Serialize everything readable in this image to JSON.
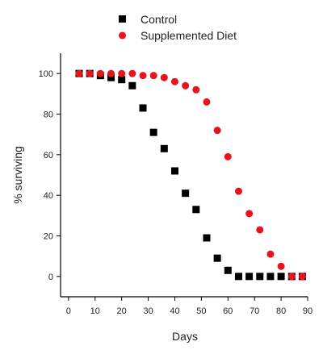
{
  "chart_data": {
    "type": "scatter",
    "title": "",
    "xlabel": "Days",
    "ylabel": "% surviving",
    "xlim": [
      -3,
      90
    ],
    "ylim": [
      -10,
      110
    ],
    "xticks": [
      0,
      10,
      20,
      30,
      40,
      50,
      60,
      70,
      80,
      90
    ],
    "yticks": [
      0,
      20,
      40,
      60,
      80,
      100
    ],
    "grid": false,
    "legend_position": "top-center",
    "series": [
      {
        "name": "Control",
        "marker": "square",
        "color": "#000000",
        "x": [
          4,
          8,
          12,
          16,
          20,
          24,
          28,
          32,
          36,
          40,
          44,
          48,
          52,
          56,
          60,
          64,
          68,
          72,
          76,
          80,
          84,
          88
        ],
        "y": [
          100,
          100,
          99,
          98,
          97,
          94,
          83,
          71,
          63,
          52,
          41,
          33,
          19,
          9,
          3,
          0,
          0,
          0,
          0,
          0,
          0,
          0
        ]
      },
      {
        "name": "Supplemented Diet",
        "marker": "circle",
        "color": "#e8141b",
        "x": [
          4,
          8,
          12,
          16,
          20,
          24,
          28,
          32,
          36,
          40,
          44,
          48,
          52,
          56,
          60,
          64,
          68,
          72,
          76,
          80,
          84,
          88
        ],
        "y": [
          100,
          100,
          100,
          100,
          100,
          100,
          99,
          99,
          98,
          96,
          94,
          92,
          86,
          72,
          59,
          42,
          31,
          23,
          11,
          5,
          0,
          0
        ]
      }
    ]
  }
}
